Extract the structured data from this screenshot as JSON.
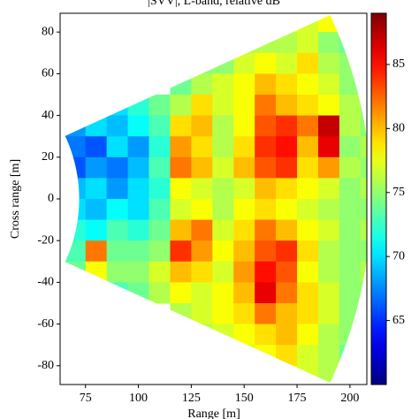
{
  "chart_data": {
    "type": "heatmap",
    "title": "|SVV|, L-band, relative dB",
    "xlabel": "Range [m]",
    "ylabel": "Cross range [m]",
    "colormap": "jet",
    "x": [
      70,
      80,
      90,
      100,
      110,
      120,
      130,
      140,
      150,
      160,
      170,
      180,
      190,
      200,
      210
    ],
    "y": [
      85,
      75,
      65,
      55,
      45,
      35,
      25,
      15,
      5,
      -5,
      -15,
      -25,
      -35,
      -45,
      -55,
      -65,
      -75,
      -85
    ],
    "values": [
      [
        null,
        null,
        null,
        null,
        null,
        null,
        null,
        null,
        null,
        null,
        78,
        77,
        78,
        null,
        null
      ],
      [
        null,
        null,
        null,
        null,
        null,
        null,
        null,
        null,
        76,
        76,
        76,
        77,
        75,
        74,
        null
      ],
      [
        null,
        null,
        null,
        null,
        null,
        null,
        75,
        75,
        77,
        78,
        77,
        79,
        76,
        75,
        null
      ],
      [
        null,
        null,
        null,
        null,
        null,
        74,
        76,
        77,
        78,
        80,
        79,
        78,
        77,
        75,
        null
      ],
      [
        null,
        null,
        70,
        72,
        74,
        76,
        79,
        77,
        78,
        82,
        80,
        79,
        78,
        76,
        75
      ],
      [
        68,
        70,
        69,
        71,
        73,
        79,
        80,
        76,
        78,
        83,
        84,
        82,
        87,
        76,
        75
      ],
      [
        67,
        66,
        70,
        68,
        72,
        81,
        79,
        76,
        79,
        84,
        85,
        80,
        86,
        75,
        76
      ],
      [
        66,
        68,
        67,
        69,
        73,
        82,
        80,
        77,
        80,
        83,
        84,
        79,
        81,
        76,
        75
      ],
      [
        69,
        70,
        68,
        70,
        72,
        78,
        77,
        76,
        77,
        80,
        79,
        78,
        77,
        75,
        76
      ],
      [
        70,
        69,
        71,
        70,
        73,
        77,
        78,
        76,
        78,
        79,
        78,
        77,
        76,
        75,
        75
      ],
      [
        72,
        71,
        73,
        72,
        74,
        80,
        82,
        77,
        79,
        82,
        80,
        78,
        77,
        75,
        76
      ],
      [
        73,
        82,
        74,
        74,
        75,
        84,
        81,
        78,
        80,
        83,
        84,
        79,
        76,
        75,
        75
      ],
      [
        74,
        78,
        75,
        75,
        77,
        80,
        79,
        77,
        81,
        85,
        83,
        78,
        76,
        75,
        76
      ],
      [
        null,
        null,
        73,
        74,
        76,
        78,
        77,
        78,
        80,
        86,
        82,
        79,
        77,
        75,
        75
      ],
      [
        null,
        null,
        null,
        null,
        null,
        76,
        77,
        78,
        79,
        82,
        80,
        79,
        77,
        75,
        null
      ],
      [
        null,
        null,
        null,
        null,
        null,
        null,
        76,
        77,
        78,
        79,
        80,
        78,
        76,
        75,
        null
      ],
      [
        null,
        null,
        null,
        null,
        null,
        null,
        null,
        null,
        77,
        78,
        79,
        77,
        76,
        74,
        null
      ],
      [
        null,
        null,
        null,
        null,
        null,
        null,
        null,
        null,
        null,
        null,
        78,
        77,
        76,
        null,
        null
      ]
    ],
    "xlim": [
      63,
      208
    ],
    "xticks": [
      75,
      100,
      125,
      150,
      175,
      200
    ],
    "ylim": [
      -89,
      89
    ],
    "yticks": [
      -80,
      -60,
      -40,
      -20,
      0,
      20,
      40,
      60,
      80
    ],
    "clim": [
      60,
      89
    ],
    "cticks": [
      65,
      70,
      75,
      80,
      85
    ]
  }
}
